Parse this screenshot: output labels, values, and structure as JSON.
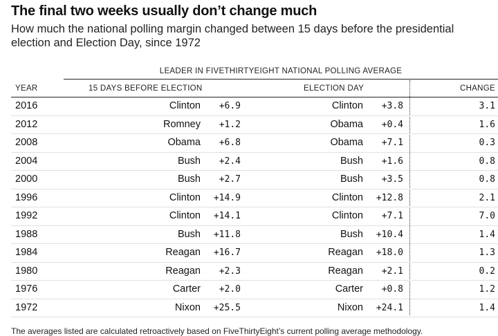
{
  "title": "The final two weeks usually don’t change much",
  "subtitle_line1": "How much the national polling margin changed between 15 days before the presidential",
  "subtitle_line2": "election and Election Day, since 1972",
  "group_header": "LEADER IN FIVETHIRTYEIGHT NATIONAL POLLING AVERAGE",
  "columns": {
    "year": "YEAR",
    "before": "15 DAYS BEFORE ELECTION",
    "eday": "ELECTION DAY",
    "change": "CHANGE"
  },
  "rows": [
    {
      "year": "2016",
      "leader_15": "Clinton",
      "margin_15": "+6.9",
      "leader_eday": "Clinton",
      "margin_eday": "+3.8",
      "change": "3.1"
    },
    {
      "year": "2012",
      "leader_15": "Romney",
      "margin_15": "+1.2",
      "leader_eday": "Obama",
      "margin_eday": "+0.4",
      "change": "1.6"
    },
    {
      "year": "2008",
      "leader_15": "Obama",
      "margin_15": "+6.8",
      "leader_eday": "Obama",
      "margin_eday": "+7.1",
      "change": "0.3"
    },
    {
      "year": "2004",
      "leader_15": "Bush",
      "margin_15": "+2.4",
      "leader_eday": "Bush",
      "margin_eday": "+1.6",
      "change": "0.8"
    },
    {
      "year": "2000",
      "leader_15": "Bush",
      "margin_15": "+2.7",
      "leader_eday": "Bush",
      "margin_eday": "+3.5",
      "change": "0.8"
    },
    {
      "year": "1996",
      "leader_15": "Clinton",
      "margin_15": "+14.9",
      "leader_eday": "Clinton",
      "margin_eday": "+12.8",
      "change": "2.1"
    },
    {
      "year": "1992",
      "leader_15": "Clinton",
      "margin_15": "+14.1",
      "leader_eday": "Clinton",
      "margin_eday": "+7.1",
      "change": "7.0"
    },
    {
      "year": "1988",
      "leader_15": "Bush",
      "margin_15": "+11.8",
      "leader_eday": "Bush",
      "margin_eday": "+10.4",
      "change": "1.4"
    },
    {
      "year": "1984",
      "leader_15": "Reagan",
      "margin_15": "+16.7",
      "leader_eday": "Reagan",
      "margin_eday": "+18.0",
      "change": "1.3"
    },
    {
      "year": "1980",
      "leader_15": "Reagan",
      "margin_15": "+2.3",
      "leader_eday": "Reagan",
      "margin_eday": "+2.1",
      "change": "0.2"
    },
    {
      "year": "1976",
      "leader_15": "Carter",
      "margin_15": "+2.0",
      "leader_eday": "Carter",
      "margin_eday": "+0.8",
      "change": "1.2"
    },
    {
      "year": "1972",
      "leader_15": "Nixon",
      "margin_15": "+25.5",
      "leader_eday": "Nixon",
      "margin_eday": "+24.1",
      "change": "1.4"
    }
  ],
  "footnote": "The averages listed are calculated retroactively based on FiveThirtyEight’s current polling average methodology."
}
